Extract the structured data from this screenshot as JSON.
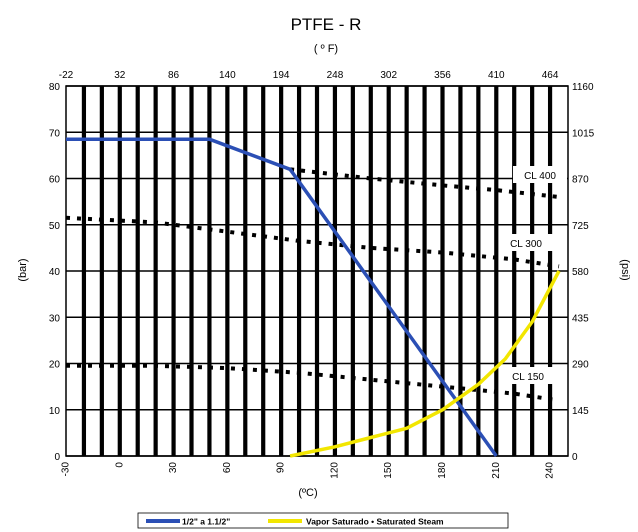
{
  "chart_data": {
    "type": "line",
    "title": "PTFE - R",
    "top_axis_label": "( º F)",
    "xlabel": "(ºC)",
    "ylabel": "(bar)",
    "y2label": "(psi)",
    "xlim": [
      -30,
      250
    ],
    "ylim": [
      0,
      80
    ],
    "x_ticks": [
      "-30",
      "0",
      "30",
      "60",
      "90",
      "120",
      "150",
      "180",
      "210",
      "240"
    ],
    "x_tick_values": [
      -30,
      0,
      30,
      60,
      90,
      120,
      150,
      180,
      210,
      240
    ],
    "top_ticks": [
      "-22",
      "32",
      "86",
      "140",
      "194",
      "248",
      "302",
      "356",
      "410",
      "464"
    ],
    "y_ticks": [
      "0",
      "10",
      "20",
      "30",
      "40",
      "50",
      "60",
      "70",
      "80"
    ],
    "y_tick_values": [
      0,
      10,
      20,
      30,
      40,
      50,
      60,
      70,
      80
    ],
    "y2_ticks": [
      "0",
      "145",
      "290",
      "435",
      "580",
      "725",
      "870",
      "1015",
      "1160"
    ],
    "grid": true,
    "legend_position": "bottom",
    "series": [
      {
        "name": "1/2\" a 1.1/2\"",
        "color": "#2b4fb5",
        "style": "solid",
        "x": [
          -30,
          10,
          50,
          95,
          210
        ],
        "y": [
          68.5,
          68.5,
          68.5,
          62,
          0
        ]
      },
      {
        "name": "Vapor Saturado  •  Saturated Steam",
        "color": "#f2e600",
        "style": "solid",
        "x": [
          95,
          120,
          140,
          160,
          180,
          200,
          215,
          230,
          245
        ],
        "y": [
          0,
          2,
          4,
          6,
          10,
          15.5,
          21,
          29,
          40
        ]
      },
      {
        "label": "CL 400",
        "color": "#000000",
        "style": "dotted",
        "x": [
          95,
          140,
          180,
          210,
          245
        ],
        "y": [
          62,
          60,
          58.5,
          57.5,
          56
        ]
      },
      {
        "label": "CL 300",
        "color": "#000000",
        "style": "dotted",
        "x": [
          -30,
          20,
          60,
          100,
          140,
          180,
          220,
          245
        ],
        "y": [
          51.5,
          50.5,
          48.5,
          46.5,
          45,
          44,
          42.5,
          41
        ]
      },
      {
        "label": "CL 150",
        "color": "#000000",
        "style": "dotted",
        "x": [
          -30,
          20,
          60,
          100,
          140,
          180,
          220,
          245
        ],
        "y": [
          19.5,
          19.5,
          19,
          18,
          16.5,
          15,
          13.5,
          12
        ]
      }
    ],
    "annotations": [
      "CL 400",
      "CL 300",
      "CL 150"
    ]
  }
}
